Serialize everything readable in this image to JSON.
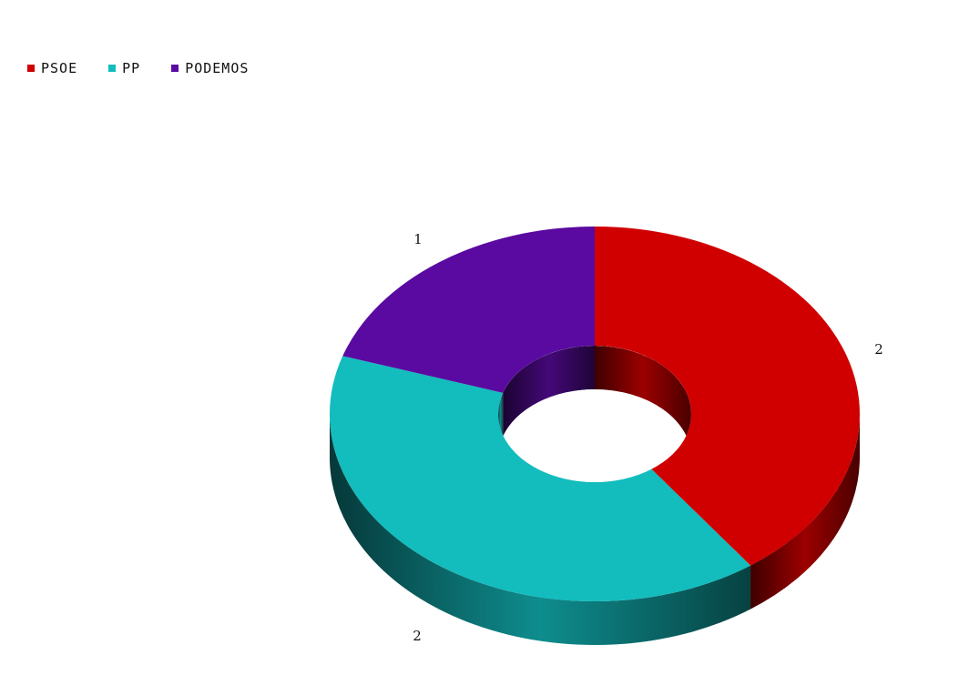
{
  "chart_data": {
    "type": "pie",
    "style": "3d-donut",
    "legend_position": "top-left",
    "categories": [
      "PSOE",
      "PP",
      "PODEMOS"
    ],
    "values": [
      2,
      2,
      1
    ],
    "data_labels": [
      "2",
      "2",
      "1"
    ],
    "colors": [
      "#d00000",
      "#13bcbd",
      "#5a0aa0"
    ],
    "title": "",
    "xlabel": "",
    "ylabel": ""
  }
}
